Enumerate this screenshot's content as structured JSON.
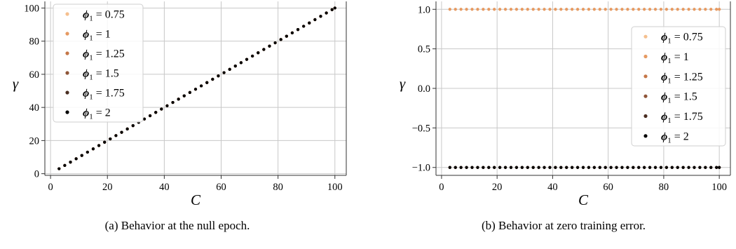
{
  "captions": {
    "a": "(a) Behavior at the null epoch.",
    "b": "(b) Behavior at zero training error."
  },
  "chart_data": [
    {
      "type": "scatter",
      "xlabel": "C",
      "ylabel": "γ",
      "xlim": [
        -2,
        104
      ],
      "ylim": [
        -1,
        104
      ],
      "xticks": [
        0,
        20,
        40,
        60,
        80,
        100
      ],
      "yticks": [
        0,
        20,
        40,
        60,
        80,
        100
      ],
      "x_tick_labels": [
        "0",
        "20",
        "40",
        "60",
        "80",
        "100"
      ],
      "y_tick_labels": [
        "0",
        "20",
        "40",
        "60",
        "80",
        "100"
      ],
      "grid": true,
      "legend_position": "upper-left",
      "x": [
        3,
        5,
        7,
        9,
        11,
        13,
        15,
        17,
        19,
        21,
        23,
        25,
        27,
        29,
        31,
        33,
        35,
        37,
        39,
        41,
        43,
        45,
        47,
        49,
        51,
        53,
        55,
        57,
        59,
        61,
        63,
        65,
        67,
        69,
        71,
        73,
        75,
        77,
        79,
        81,
        83,
        85,
        87,
        89,
        91,
        93,
        95,
        97,
        99,
        100
      ],
      "series": [
        {
          "name": "ϕ1 = 0.75",
          "legend_label": {
            "lhs": "ϕ",
            "sub": "1",
            "rhs": " = 0.75"
          },
          "color": "#f5c08f",
          "y": [
            3,
            5,
            7,
            9,
            11,
            13,
            15,
            17,
            19,
            21,
            23,
            25,
            27,
            29,
            31,
            33,
            35,
            37,
            39,
            41,
            43,
            45,
            47,
            49,
            51,
            53,
            55,
            57,
            59,
            61,
            63,
            65,
            67,
            69,
            71,
            73,
            75,
            77,
            79,
            81,
            83,
            85,
            87,
            89,
            91,
            93,
            95,
            97,
            99,
            100
          ]
        },
        {
          "name": "ϕ1 = 1",
          "legend_label": {
            "lhs": "ϕ",
            "sub": "1",
            "rhs": " = 1"
          },
          "color": "#e69a62",
          "y": [
            3,
            5,
            7,
            9,
            11,
            13,
            15,
            17,
            19,
            21,
            23,
            25,
            27,
            29,
            31,
            33,
            35,
            37,
            39,
            41,
            43,
            45,
            47,
            49,
            51,
            53,
            55,
            57,
            59,
            61,
            63,
            65,
            67,
            69,
            71,
            73,
            75,
            77,
            79,
            81,
            83,
            85,
            87,
            89,
            91,
            93,
            95,
            97,
            99,
            100
          ]
        },
        {
          "name": "ϕ1 = 1.25",
          "legend_label": {
            "lhs": "ϕ",
            "sub": "1",
            "rhs": " = 1.25"
          },
          "color": "#c57748",
          "y": [
            3,
            5,
            7,
            9,
            11,
            13,
            15,
            17,
            19,
            21,
            23,
            25,
            27,
            29,
            31,
            33,
            35,
            37,
            39,
            41,
            43,
            45,
            47,
            49,
            51,
            53,
            55,
            57,
            59,
            61,
            63,
            65,
            67,
            69,
            71,
            73,
            75,
            77,
            79,
            81,
            83,
            85,
            87,
            89,
            91,
            93,
            95,
            97,
            99,
            100
          ]
        },
        {
          "name": "ϕ1 = 1.5",
          "legend_label": {
            "lhs": "ϕ",
            "sub": "1",
            "rhs": " = 1.5"
          },
          "color": "#8f5538",
          "y": [
            3,
            5,
            7,
            9,
            11,
            13,
            15,
            17,
            19,
            21,
            23,
            25,
            27,
            29,
            31,
            33,
            35,
            37,
            39,
            41,
            43,
            45,
            47,
            49,
            51,
            53,
            55,
            57,
            59,
            61,
            63,
            65,
            67,
            69,
            71,
            73,
            75,
            77,
            79,
            81,
            83,
            85,
            87,
            89,
            91,
            93,
            95,
            97,
            99,
            100
          ]
        },
        {
          "name": "ϕ1 = 1.75",
          "legend_label": {
            "lhs": "ϕ",
            "sub": "1",
            "rhs": " = 1.75"
          },
          "color": "#4a2e22",
          "y": [
            3,
            5,
            7,
            9,
            11,
            13,
            15,
            17,
            19,
            21,
            23,
            25,
            27,
            29,
            31,
            33,
            35,
            37,
            39,
            41,
            43,
            45,
            47,
            49,
            51,
            53,
            55,
            57,
            59,
            61,
            63,
            65,
            67,
            69,
            71,
            73,
            75,
            77,
            79,
            81,
            83,
            85,
            87,
            89,
            91,
            93,
            95,
            97,
            99,
            100
          ]
        },
        {
          "name": "ϕ1 = 2",
          "legend_label": {
            "lhs": "ϕ",
            "sub": "1",
            "rhs": " = 2"
          },
          "color": "#000000",
          "y": [
            3,
            5,
            7,
            9,
            11,
            13,
            15,
            17,
            19,
            21,
            23,
            25,
            27,
            29,
            31,
            33,
            35,
            37,
            39,
            41,
            43,
            45,
            47,
            49,
            51,
            53,
            55,
            57,
            59,
            61,
            63,
            65,
            67,
            69,
            71,
            73,
            75,
            77,
            79,
            81,
            83,
            85,
            87,
            89,
            91,
            93,
            95,
            97,
            99,
            100
          ]
        }
      ]
    },
    {
      "type": "scatter",
      "xlabel": "C",
      "ylabel": "γ",
      "xlim": [
        -2,
        104
      ],
      "ylim": [
        -1.1,
        1.1
      ],
      "xticks": [
        0,
        20,
        40,
        60,
        80,
        100
      ],
      "yticks": [
        -1.0,
        -0.5,
        0.0,
        0.5,
        1.0
      ],
      "x_tick_labels": [
        "0",
        "20",
        "40",
        "60",
        "80",
        "100"
      ],
      "y_tick_labels": [
        "−1.0",
        "−0.5",
        "0.0",
        "0.5",
        "1.0"
      ],
      "grid": true,
      "legend_position": "right",
      "x": [
        3,
        5,
        7,
        9,
        11,
        13,
        15,
        17,
        19,
        21,
        23,
        25,
        27,
        29,
        31,
        33,
        35,
        37,
        39,
        41,
        43,
        45,
        47,
        49,
        51,
        53,
        55,
        57,
        59,
        61,
        63,
        65,
        67,
        69,
        71,
        73,
        75,
        77,
        79,
        81,
        83,
        85,
        87,
        89,
        91,
        93,
        95,
        97,
        99,
        100
      ],
      "series": [
        {
          "name": "ϕ1 = 0.75",
          "legend_label": {
            "lhs": "ϕ",
            "sub": "1",
            "rhs": " = 0.75"
          },
          "color": "#f5c08f",
          "constant_y": 1.0
        },
        {
          "name": "ϕ1 = 1",
          "legend_label": {
            "lhs": "ϕ",
            "sub": "1",
            "rhs": " = 1"
          },
          "color": "#e69a62",
          "constant_y": 1.0
        },
        {
          "name": "ϕ1 = 1.25",
          "legend_label": {
            "lhs": "ϕ",
            "sub": "1",
            "rhs": " = 1.25"
          },
          "color": "#c57748",
          "constant_y": -1.0
        },
        {
          "name": "ϕ1 = 1.5",
          "legend_label": {
            "lhs": "ϕ",
            "sub": "1",
            "rhs": " = 1.5"
          },
          "color": "#8f5538",
          "constant_y": -1.0
        },
        {
          "name": "ϕ1 = 1.75",
          "legend_label": {
            "lhs": "ϕ",
            "sub": "1",
            "rhs": " = 1.75"
          },
          "color": "#4a2e22",
          "constant_y": -1.0
        },
        {
          "name": "ϕ1 = 2",
          "legend_label": {
            "lhs": "ϕ",
            "sub": "1",
            "rhs": " = 2"
          },
          "color": "#000000",
          "constant_y": -1.0
        }
      ]
    }
  ]
}
